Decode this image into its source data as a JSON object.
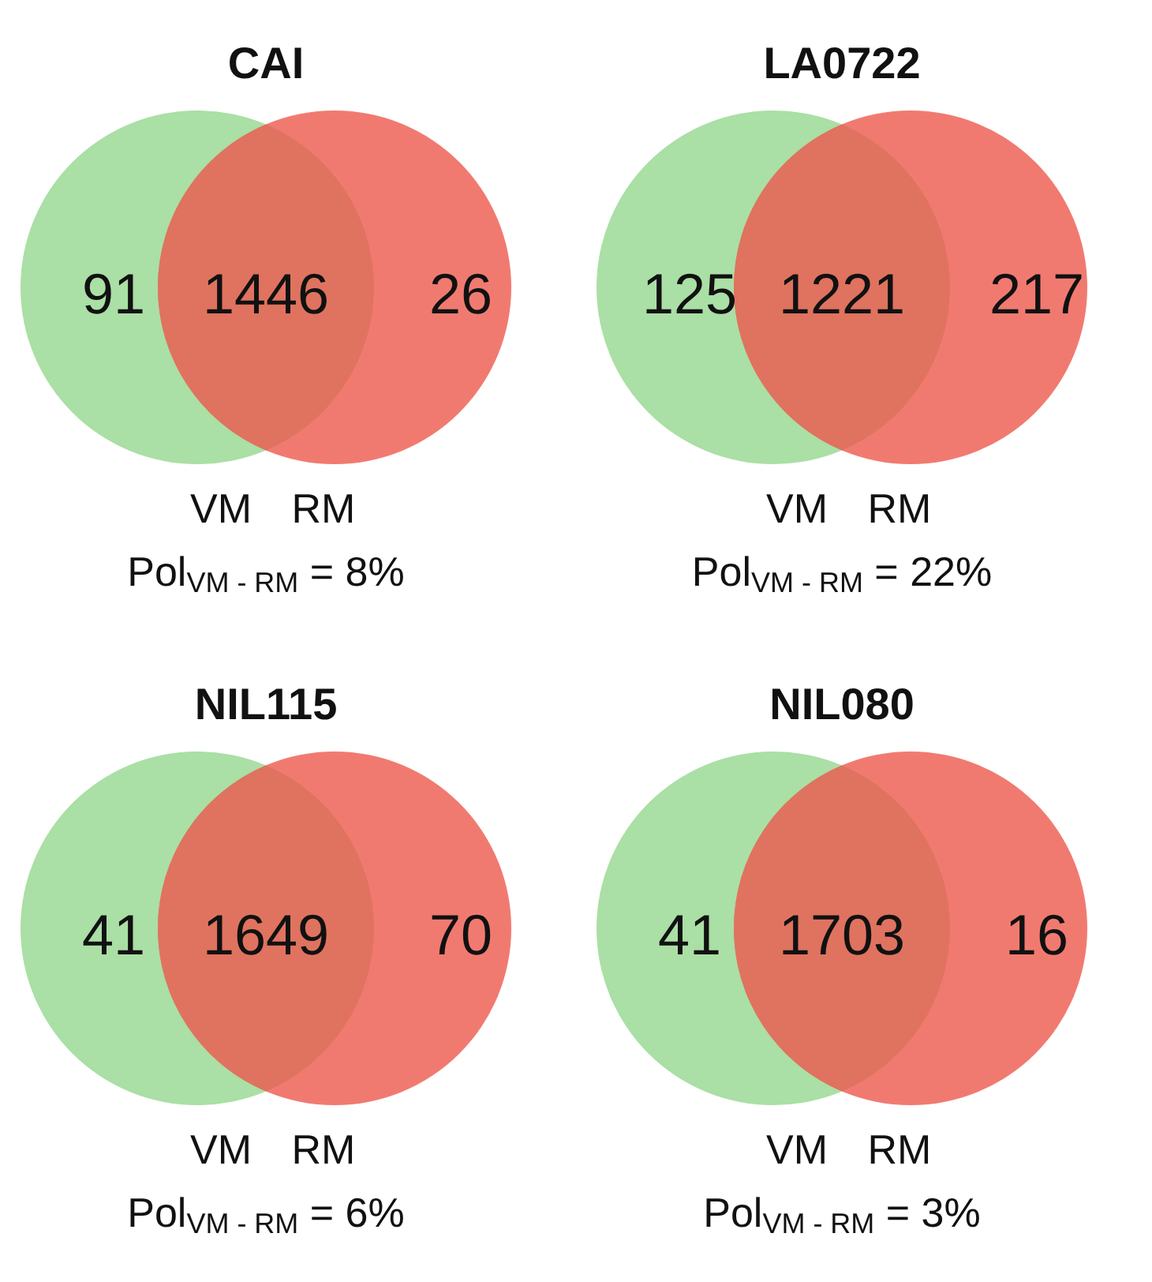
{
  "chart_data": [
    {
      "type": "other",
      "title": "CAI",
      "categories": [
        null,
        null,
        null
      ],
      "values": [
        91,
        1446,
        26
      ],
      "colors": [
        "#aadfa5",
        "#df735f",
        "#f17a70"
      ],
      "data_labels": true,
      "annotations": [
        "VM",
        "RM",
        "Pol$_{VM - RM}$ = 8%"
      ]
    },
    {
      "type": "other",
      "title": "LA0722",
      "categories": [
        null,
        null,
        null
      ],
      "values": [
        125,
        1221,
        217
      ],
      "colors": [
        "#aadfa5",
        "#df735f",
        "#f17a70"
      ],
      "data_labels": true,
      "annotations": [
        "VM",
        "RM",
        "Pol$_{VM - RM}$ = 22%"
      ]
    },
    {
      "type": "other",
      "title": "NIL115",
      "categories": [
        null,
        null,
        null
      ],
      "values": [
        41,
        1649,
        70
      ],
      "colors": [
        "#aadfa5",
        "#df735f",
        "#f17a70"
      ],
      "data_labels": true,
      "annotations": [
        "VM",
        "RM",
        "Pol$_{VM - RM}$ = 6%"
      ]
    },
    {
      "type": "other",
      "title": "NIL080",
      "categories": [
        null,
        null,
        null
      ],
      "values": [
        41,
        1703,
        16
      ],
      "colors": [
        "#aadfa5",
        "#df735f",
        "#f17a70"
      ],
      "data_labels": true,
      "annotations": [
        "VM",
        "RM",
        "Pol$_{VM - RM}$ = 3%"
      ]
    }
  ]
}
